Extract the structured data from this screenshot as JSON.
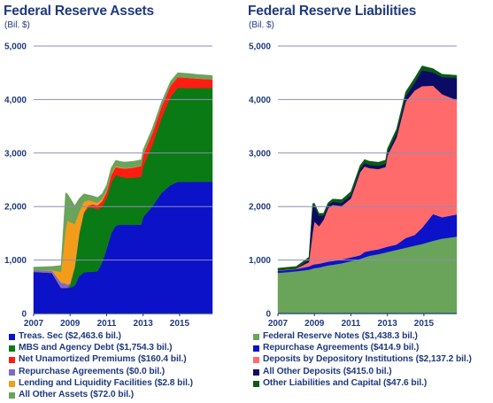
{
  "chart_data": [
    {
      "type": "area",
      "stacked": true,
      "title": "Federal Reserve Assets",
      "subtitle": "(Bil. $)",
      "xlim": [
        2007,
        2016.8
      ],
      "ylim": [
        0,
        5000
      ],
      "x_ticks": [
        "2007",
        "2009",
        "2011",
        "2013",
        "2015"
      ],
      "y_ticks": [
        "0",
        "1,000",
        "2,000",
        "3,000",
        "4,000",
        "5,000"
      ],
      "grid": true,
      "legend_position": "bottom",
      "x": [
        2007.0,
        2008.0,
        2008.5,
        2008.75,
        2008.85,
        2009.0,
        2009.25,
        2009.5,
        2009.75,
        2010.0,
        2010.25,
        2010.5,
        2010.75,
        2011.0,
        2011.25,
        2011.5,
        2011.75,
        2012.0,
        2012.5,
        2012.9,
        2013.0,
        2013.5,
        2014.0,
        2014.5,
        2014.9,
        2015.5,
        2016.0,
        2016.8
      ],
      "series": [
        {
          "name": "Treas. Sec ($2,463.6 bil.)",
          "color": "#0b12c8",
          "values": [
            780,
            760,
            480,
            480,
            480,
            480,
            520,
            700,
            770,
            780,
            780,
            790,
            950,
            1200,
            1500,
            1640,
            1660,
            1660,
            1660,
            1660,
            1800,
            2000,
            2250,
            2400,
            2460,
            2460,
            2463,
            2463
          ]
        },
        {
          "name": "MBS and Agency Debt ($1,754.3 bil.)",
          "color": "#0a7a14",
          "values": [
            0,
            0,
            0,
            0,
            0,
            50,
            350,
            800,
            1100,
            1200,
            1200,
            1150,
            1050,
            950,
            950,
            950,
            900,
            880,
            880,
            900,
            950,
            1150,
            1400,
            1650,
            1760,
            1755,
            1754,
            1754
          ]
        },
        {
          "name": "Net Unamortized Premiums ($160.4 bil.)",
          "color": "#ff1c10",
          "values": [
            0,
            0,
            0,
            0,
            0,
            0,
            0,
            0,
            20,
            40,
            60,
            80,
            100,
            120,
            140,
            150,
            160,
            170,
            190,
            200,
            210,
            215,
            215,
            210,
            200,
            190,
            175,
            160
          ]
        },
        {
          "name": "Repurchase Agreements ($0.0 bil.)",
          "color": "#7a6ad0",
          "values": [
            30,
            40,
            100,
            80,
            60,
            30,
            0,
            0,
            0,
            0,
            0,
            0,
            0,
            0,
            0,
            0,
            0,
            0,
            0,
            0,
            0,
            0,
            0,
            0,
            0,
            0,
            0,
            0
          ]
        },
        {
          "name": "Lending and Liquidity Facilities ($2.8 bil.)",
          "color": "#f39c1a",
          "values": [
            0,
            10,
            200,
            1000,
            1200,
            1150,
            800,
            400,
            200,
            100,
            60,
            50,
            40,
            30,
            25,
            20,
            15,
            12,
            10,
            8,
            6,
            5,
            4,
            3,
            3,
            3,
            3,
            3
          ]
        },
        {
          "name": "All Other Assets ($72.0 bil.)",
          "color": "#6aa35a",
          "values": [
            60,
            70,
            120,
            700,
            500,
            450,
            350,
            250,
            150,
            100,
            100,
            100,
            100,
            100,
            110,
            110,
            110,
            110,
            110,
            110,
            100,
            90,
            80,
            80,
            80,
            80,
            75,
            72
          ]
        }
      ]
    },
    {
      "type": "area",
      "stacked": true,
      "title": "Federal Reserve Liabilities",
      "subtitle": "(Bil. $)",
      "xlim": [
        2007,
        2016.8
      ],
      "ylim": [
        0,
        5000
      ],
      "x_ticks": [
        "2007",
        "2009",
        "2011",
        "2013",
        "2015"
      ],
      "y_ticks": [
        "0",
        "1,000",
        "2,000",
        "3,000",
        "4,000",
        "5,000"
      ],
      "grid": true,
      "legend_position": "bottom",
      "x": [
        2007.0,
        2008.0,
        2008.7,
        2008.9,
        2009.0,
        2009.25,
        2009.5,
        2009.75,
        2010.0,
        2010.5,
        2011.0,
        2011.5,
        2011.75,
        2012.0,
        2012.5,
        2012.9,
        2013.0,
        2013.5,
        2014.0,
        2014.5,
        2014.9,
        2015.5,
        2016.0,
        2016.8
      ],
      "series": [
        {
          "name": "Federal Reserve Notes ($1,438.3 bil.)",
          "color": "#6aa35a",
          "values": [
            760,
            790,
            820,
            840,
            850,
            860,
            880,
            900,
            910,
            940,
            980,
            1020,
            1050,
            1080,
            1110,
            1140,
            1150,
            1190,
            1230,
            1270,
            1300,
            1360,
            1400,
            1438
          ]
        },
        {
          "name": "Repurchase Agreements ($414.9 bil.)",
          "color": "#0b12c8",
          "values": [
            40,
            40,
            60,
            70,
            70,
            70,
            70,
            70,
            70,
            70,
            70,
            70,
            100,
            90,
            90,
            100,
            100,
            100,
            180,
            200,
            300,
            500,
            400,
            415
          ]
        },
        {
          "name": "Deposits by Depository Institutions ($2,137.2 bil.)",
          "color": "#ff6b6b",
          "values": [
            10,
            10,
            80,
            600,
            800,
            700,
            800,
            1000,
            1050,
            1000,
            1100,
            1550,
            1600,
            1550,
            1500,
            1500,
            1700,
            2000,
            2550,
            2700,
            2650,
            2400,
            2300,
            2137
          ]
        },
        {
          "name": "All Other Deposits ($415.0 bil.)",
          "color": "#0b0b66",
          "values": [
            0,
            0,
            50,
            500,
            300,
            200,
            80,
            60,
            60,
            60,
            60,
            60,
            60,
            60,
            60,
            60,
            60,
            80,
            100,
            150,
            300,
            250,
            320,
            415
          ]
        },
        {
          "name": "Other Liabilities and Capital ($47.6 bil.)",
          "color": "#0a5a12",
          "values": [
            40,
            40,
            45,
            45,
            45,
            45,
            45,
            45,
            50,
            60,
            70,
            70,
            70,
            70,
            70,
            70,
            75,
            80,
            85,
            85,
            80,
            70,
            55,
            48
          ]
        }
      ]
    }
  ]
}
